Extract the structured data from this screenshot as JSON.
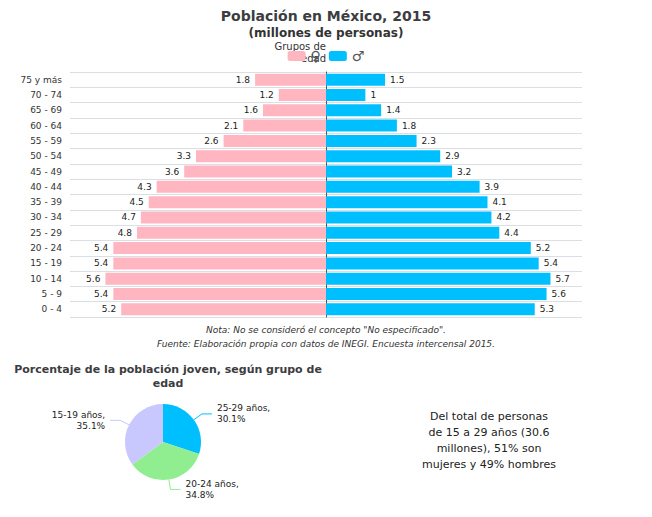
{
  "chart_data": [
    {
      "type": "bar",
      "orientation": "horizontal",
      "title": "Población en México, 2015",
      "subtitle": "(millones de personas)",
      "ylabel": "Grupos de\nedad",
      "categories": [
        "0 - 4",
        "5 - 9",
        "10 - 14",
        "15 - 19",
        "20 - 24",
        "25 - 29",
        "30 - 34",
        "35 - 39",
        "40 - 44",
        "45 - 49",
        "50 - 54",
        "55 - 59",
        "60 - 64",
        "65 - 69",
        "70 - 74",
        "75 y más"
      ],
      "series": [
        {
          "name": "♀",
          "color": "#FFB6C1",
          "values": [
            5.2,
            5.4,
            5.6,
            5.4,
            5.4,
            4.8,
            4.7,
            4.5,
            4.3,
            3.6,
            3.3,
            2.6,
            2.1,
            1.6,
            1.2,
            1.8
          ]
        },
        {
          "name": "♂",
          "color": "#00BFFF",
          "values": [
            5.3,
            5.6,
            5.7,
            5.4,
            5.2,
            4.4,
            4.2,
            4.1,
            3.9,
            3.2,
            2.9,
            2.3,
            1.8,
            1.4,
            1.0,
            1.5
          ]
        }
      ],
      "xlim": [
        0,
        6.5
      ],
      "tick_labels": "y",
      "data_labels": true,
      "grid": true,
      "legend": "top",
      "annotations": [
        "Nota: No se consideró el concepto \"No especificado\".",
        "Fuente: Elaboración propia con datos de INEGI. Encuesta intercensal 2015."
      ]
    },
    {
      "type": "pie",
      "title": "Porcentaje de la población joven, según grupo de\nedad",
      "categories": [
        "25-29 años,\n30.1%",
        "20-24 años,\n34.8%",
        "15-19 años,\n35.1%"
      ],
      "values": [
        30.1,
        34.8,
        35.1
      ],
      "colors": [
        "#00BFFF",
        "#90EE90",
        "#C8C8FF"
      ],
      "annotations": [
        "Del total de personas\nde 15 a 29 años (30.6\nmillones), 51% son\nmujeres y 49% hombres"
      ]
    }
  ]
}
